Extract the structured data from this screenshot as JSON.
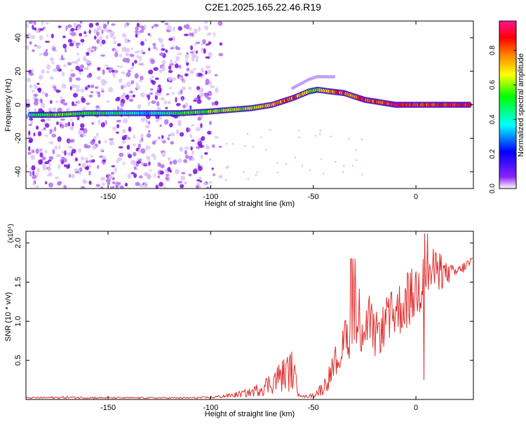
{
  "title": "C2E1.2025.165.22.46.R19",
  "colors": {
    "line": "#e03030",
    "spectrogram_purple": "#7a10e0",
    "axis": "#000000"
  },
  "chart_data": [
    {
      "type": "heatmap",
      "xlabel": "Height of straight line (km)",
      "ylabel": "Frequency (Hz)",
      "xlim": [
        -190,
        28
      ],
      "ylim": [
        -50,
        50
      ],
      "x_ticks": [
        -150,
        -100,
        -50,
        0
      ],
      "y_ticks": [
        -40,
        -20,
        0,
        20,
        40
      ],
      "colorbar": {
        "label": "Normalized spectral amplitude",
        "range": [
          0,
          0.97
        ],
        "ticks": [
          0.0,
          0.2,
          0.4,
          0.6,
          0.8
        ],
        "colormap": [
          "#ffffff",
          "#7a10e0",
          "#0000ff",
          "#00ffff",
          "#00ff00",
          "#ffff00",
          "#ff8000",
          "#ff0000",
          "#ff1493"
        ]
      },
      "ridge": {
        "x": [
          -188,
          -175,
          -160,
          -145,
          -130,
          -115,
          -100,
          -90,
          -80,
          -70,
          -60,
          -52,
          -48,
          -42,
          -35,
          -30,
          -25,
          -20,
          -15,
          -10,
          -5,
          0,
          10,
          20,
          28
        ],
        "freq_hz": [
          -6,
          -6,
          -5,
          -5,
          -5,
          -5,
          -4,
          -3,
          -2,
          0,
          4,
          8,
          9,
          8,
          7,
          5,
          3,
          2,
          1,
          0,
          0,
          0,
          0,
          0,
          0
        ],
        "amplitude": [
          0.45,
          0.55,
          0.5,
          0.45,
          0.35,
          0.5,
          0.55,
          0.6,
          0.6,
          0.75,
          0.8,
          0.6,
          0.55,
          0.75,
          0.85,
          0.75,
          0.85,
          0.8,
          0.85,
          0.95,
          0.9,
          0.9,
          0.85,
          0.9,
          0.9
        ]
      }
    },
    {
      "type": "line",
      "xlabel": "Height of straight line (km)",
      "ylabel": "SNR (10 * v/v)",
      "y_multiplier": "(x10⁴)",
      "xlim": [
        -190,
        28
      ],
      "ylim": [
        0,
        2.15
      ],
      "x_ticks": [
        -150,
        -100,
        -50,
        0
      ],
      "y_ticks": [
        0.5,
        1.0,
        1.5,
        2.0
      ],
      "y_tick_labels": [
        "0.5",
        "1.0",
        "1.5",
        "2.0"
      ],
      "envelope": {
        "x": [
          -190,
          -170,
          -150,
          -130,
          -110,
          -100,
          -90,
          -80,
          -72,
          -66,
          -60,
          -58,
          -55,
          -50,
          -45,
          -40,
          -35,
          -30,
          -25,
          -20,
          -15,
          -10,
          -5,
          0,
          5,
          10,
          15,
          20,
          28
        ],
        "upper": [
          0.03,
          0.04,
          0.03,
          0.03,
          0.03,
          0.04,
          0.08,
          0.15,
          0.32,
          0.5,
          0.65,
          0.25,
          0.05,
          0.08,
          0.25,
          0.6,
          0.95,
          1.45,
          1.55,
          1.1,
          1.25,
          1.45,
          1.6,
          1.75,
          2.0,
          1.9,
          1.75,
          1.7,
          1.85
        ],
        "lower": [
          0.01,
          0.01,
          0.01,
          0.01,
          0.01,
          0.01,
          0.02,
          0.03,
          0.05,
          0.08,
          0.1,
          0.04,
          0.02,
          0.02,
          0.05,
          0.2,
          0.4,
          0.55,
          0.45,
          0.5,
          0.65,
          0.75,
          0.85,
          0.95,
          1.2,
          1.35,
          1.45,
          1.55,
          1.7
        ]
      }
    }
  ]
}
